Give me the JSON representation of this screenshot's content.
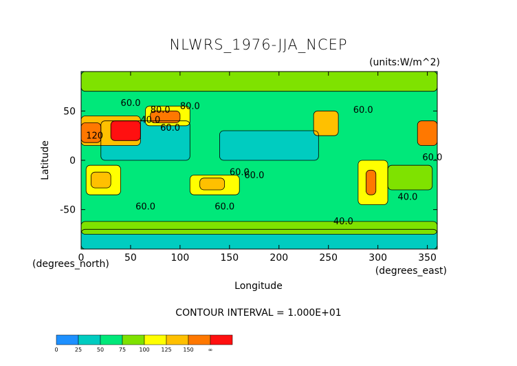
{
  "chart_data": {
    "type": "heatmap",
    "title": "NLWRS_1976-JJA_NCEP",
    "units": "(units:W/m^2)",
    "xlabel": "Longitude",
    "ylabel": "Latitude",
    "x_unit": "(degrees_east)",
    "y_unit": "(degrees_north)",
    "xlim": [
      0,
      360
    ],
    "ylim": [
      -90,
      90
    ],
    "x_ticks": [
      "0",
      "50",
      "100",
      "150",
      "200",
      "250",
      "300",
      "350"
    ],
    "y_ticks": [
      "50",
      "0",
      "-50"
    ],
    "contour_interval_text": "CONTOUR INTERVAL = 1.000E+01",
    "contour_labels": [
      "60.0",
      "80.0",
      "40.0",
      "120",
      "60.0",
      "80.0",
      "60.0",
      "60.0",
      "60.0",
      "60.0",
      "40.0",
      "60.0",
      "60.0",
      "40.0"
    ],
    "colorbar": {
      "levels": [
        "0",
        "25",
        "50",
        "75",
        "100",
        "125",
        "150",
        "∞"
      ],
      "colors": [
        "#1e90ff",
        "#00ccc0",
        "#00e87a",
        "#7fe200",
        "#ffff00",
        "#ffc000",
        "#ff7800",
        "#ff1010"
      ]
    },
    "regions": [
      {
        "lon_min": 0,
        "lon_max": 360,
        "lat_min": -90,
        "lat_max": 90,
        "level": 2
      },
      {
        "lon_min": 20,
        "lon_max": 110,
        "lat_min": 0,
        "lat_max": 40,
        "level": 1
      },
      {
        "lon_min": 140,
        "lon_max": 240,
        "lat_min": 0,
        "lat_max": 30,
        "level": 1
      },
      {
        "lon_min": 0,
        "lon_max": 360,
        "lat_min": -90,
        "lat_max": -70,
        "level": 1
      },
      {
        "lon_min": 0,
        "lon_max": 60,
        "lat_min": 15,
        "lat_max": 45,
        "level": 5
      },
      {
        "lon_min": 0,
        "lon_max": 20,
        "lat_min": 18,
        "lat_max": 38,
        "level": 6
      },
      {
        "lon_min": 30,
        "lon_max": 60,
        "lat_min": 20,
        "lat_max": 40,
        "level": 7
      },
      {
        "lon_min": 65,
        "lon_max": 110,
        "lat_min": 35,
        "lat_max": 55,
        "level": 4
      },
      {
        "lon_min": 70,
        "lon_max": 100,
        "lat_min": 38,
        "lat_max": 50,
        "level": 6
      },
      {
        "lon_min": 235,
        "lon_max": 260,
        "lat_min": 25,
        "lat_max": 50,
        "level": 5
      },
      {
        "lon_min": 340,
        "lon_max": 360,
        "lat_min": 15,
        "lat_max": 40,
        "level": 6
      },
      {
        "lon_min": 5,
        "lon_max": 40,
        "lat_min": -35,
        "lat_max": -5,
        "level": 4
      },
      {
        "lon_min": 10,
        "lon_max": 30,
        "lat_min": -28,
        "lat_max": -12,
        "level": 5
      },
      {
        "lon_min": 110,
        "lon_max": 160,
        "lat_min": -35,
        "lat_max": -15,
        "level": 4
      },
      {
        "lon_min": 120,
        "lon_max": 145,
        "lat_min": -30,
        "lat_max": -18,
        "level": 5
      },
      {
        "lon_min": 280,
        "lon_max": 310,
        "lat_min": -45,
        "lat_max": 0,
        "level": 4
      },
      {
        "lon_min": 288,
        "lon_max": 298,
        "lat_min": -35,
        "lat_max": -10,
        "level": 6
      },
      {
        "lon_min": 310,
        "lon_max": 355,
        "lat_min": -30,
        "lat_max": -5,
        "level": 3
      },
      {
        "lon_min": 0,
        "lon_max": 360,
        "lat_min": 70,
        "lat_max": 90,
        "level": 3
      },
      {
        "lon_min": 0,
        "lon_max": 360,
        "lat_min": -75,
        "lat_max": -62,
        "level": 3
      }
    ]
  }
}
